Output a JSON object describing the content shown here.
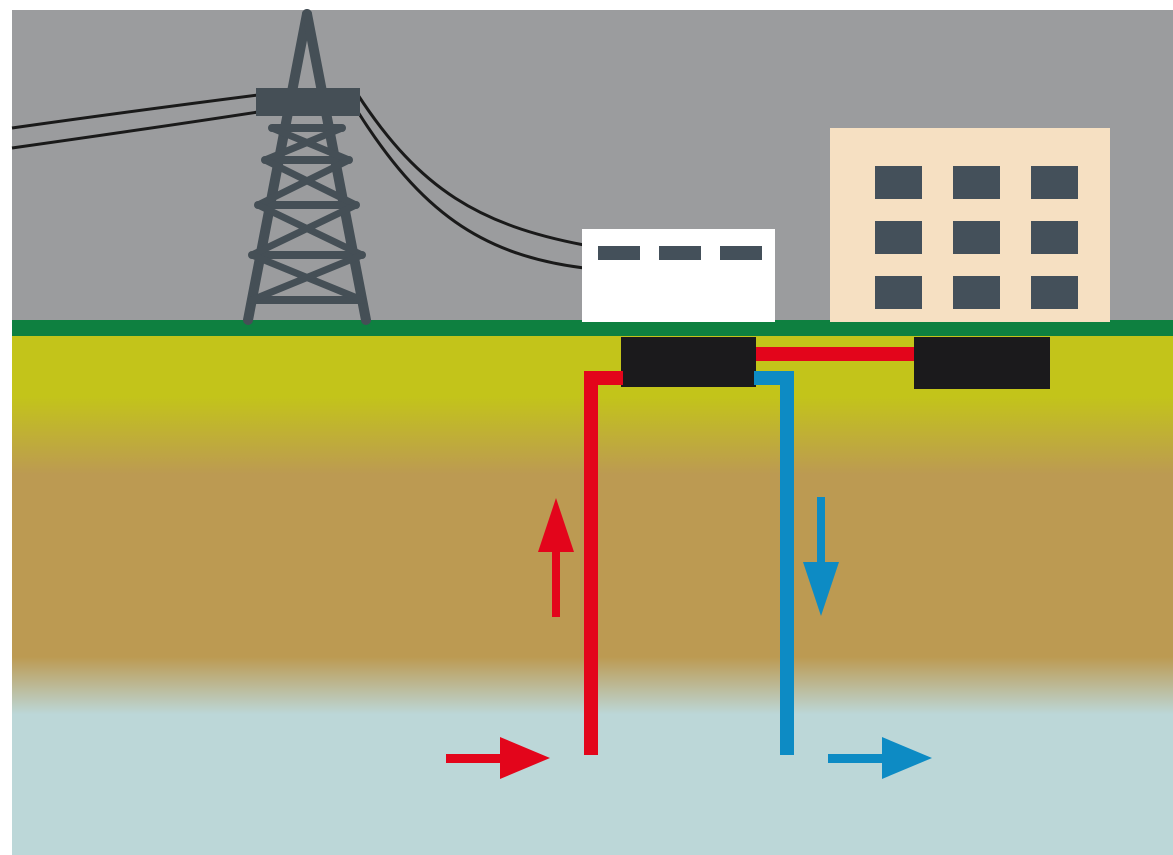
{
  "colors": {
    "sky": "#9b9c9e",
    "tower": "#454f56",
    "wire": "#1a1a1a",
    "grass": "#0e8040",
    "topsoil": "#c3c41a",
    "soil": "#bc9a52",
    "water": "#bcd7d8",
    "station": "#ffffff",
    "building": "#f6e0c2",
    "window": "#44505a",
    "box": "#1b1a1c",
    "hot_pipe": "#e3051b",
    "cold_pipe": "#0d8bc4"
  },
  "icons": {
    "tower": "power-pylon-icon",
    "station": "pump-station-icon",
    "building": "apartment-building-icon",
    "heat_pump": "heat-pump-unit-icon",
    "exchanger": "heat-exchanger-icon",
    "up_arrow": "flow-up-arrow-icon",
    "down_arrow": "flow-down-arrow-icon",
    "in_arrow": "flow-in-arrow-icon",
    "out_arrow": "flow-out-arrow-icon"
  }
}
